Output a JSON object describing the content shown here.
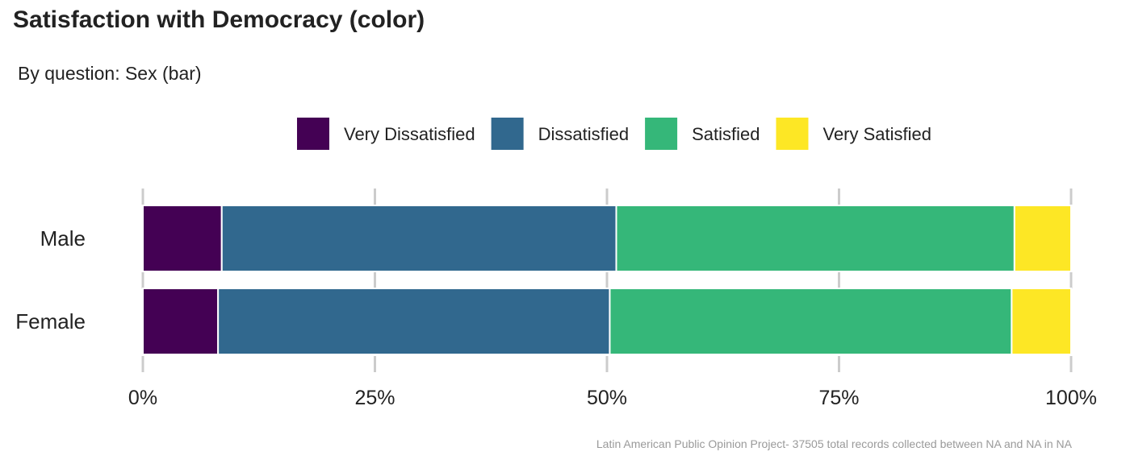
{
  "chart_data": {
    "type": "bar",
    "orientation": "horizontal",
    "stacked": true,
    "normalized": true,
    "title": "Satisfaction with Democracy (color)",
    "subtitle": "By question: Sex (bar)",
    "caption": "Latin American Public Opinion Project- 37505 total records collected between NA and NA in  NA",
    "categories": [
      "Male",
      "Female"
    ],
    "series": [
      {
        "name": "Very Dissatisfied",
        "color": "#440154",
        "values": [
          8.5,
          8.1
        ]
      },
      {
        "name": "Dissatisfied",
        "color": "#31688E",
        "values": [
          42.5,
          42.2
        ]
      },
      {
        "name": "Satisfied",
        "color": "#35B779",
        "values": [
          42.9,
          43.3
        ]
      },
      {
        "name": "Very Satisfied",
        "color": "#FDE725",
        "values": [
          6.1,
          6.4
        ]
      }
    ],
    "xlim": [
      0,
      100
    ],
    "x_ticks": [
      "0%",
      "25%",
      "50%",
      "75%",
      "100%"
    ],
    "x_tick_values": [
      0,
      25,
      50,
      75,
      100
    ],
    "legend_position": "top",
    "grid": "vertical-major"
  }
}
